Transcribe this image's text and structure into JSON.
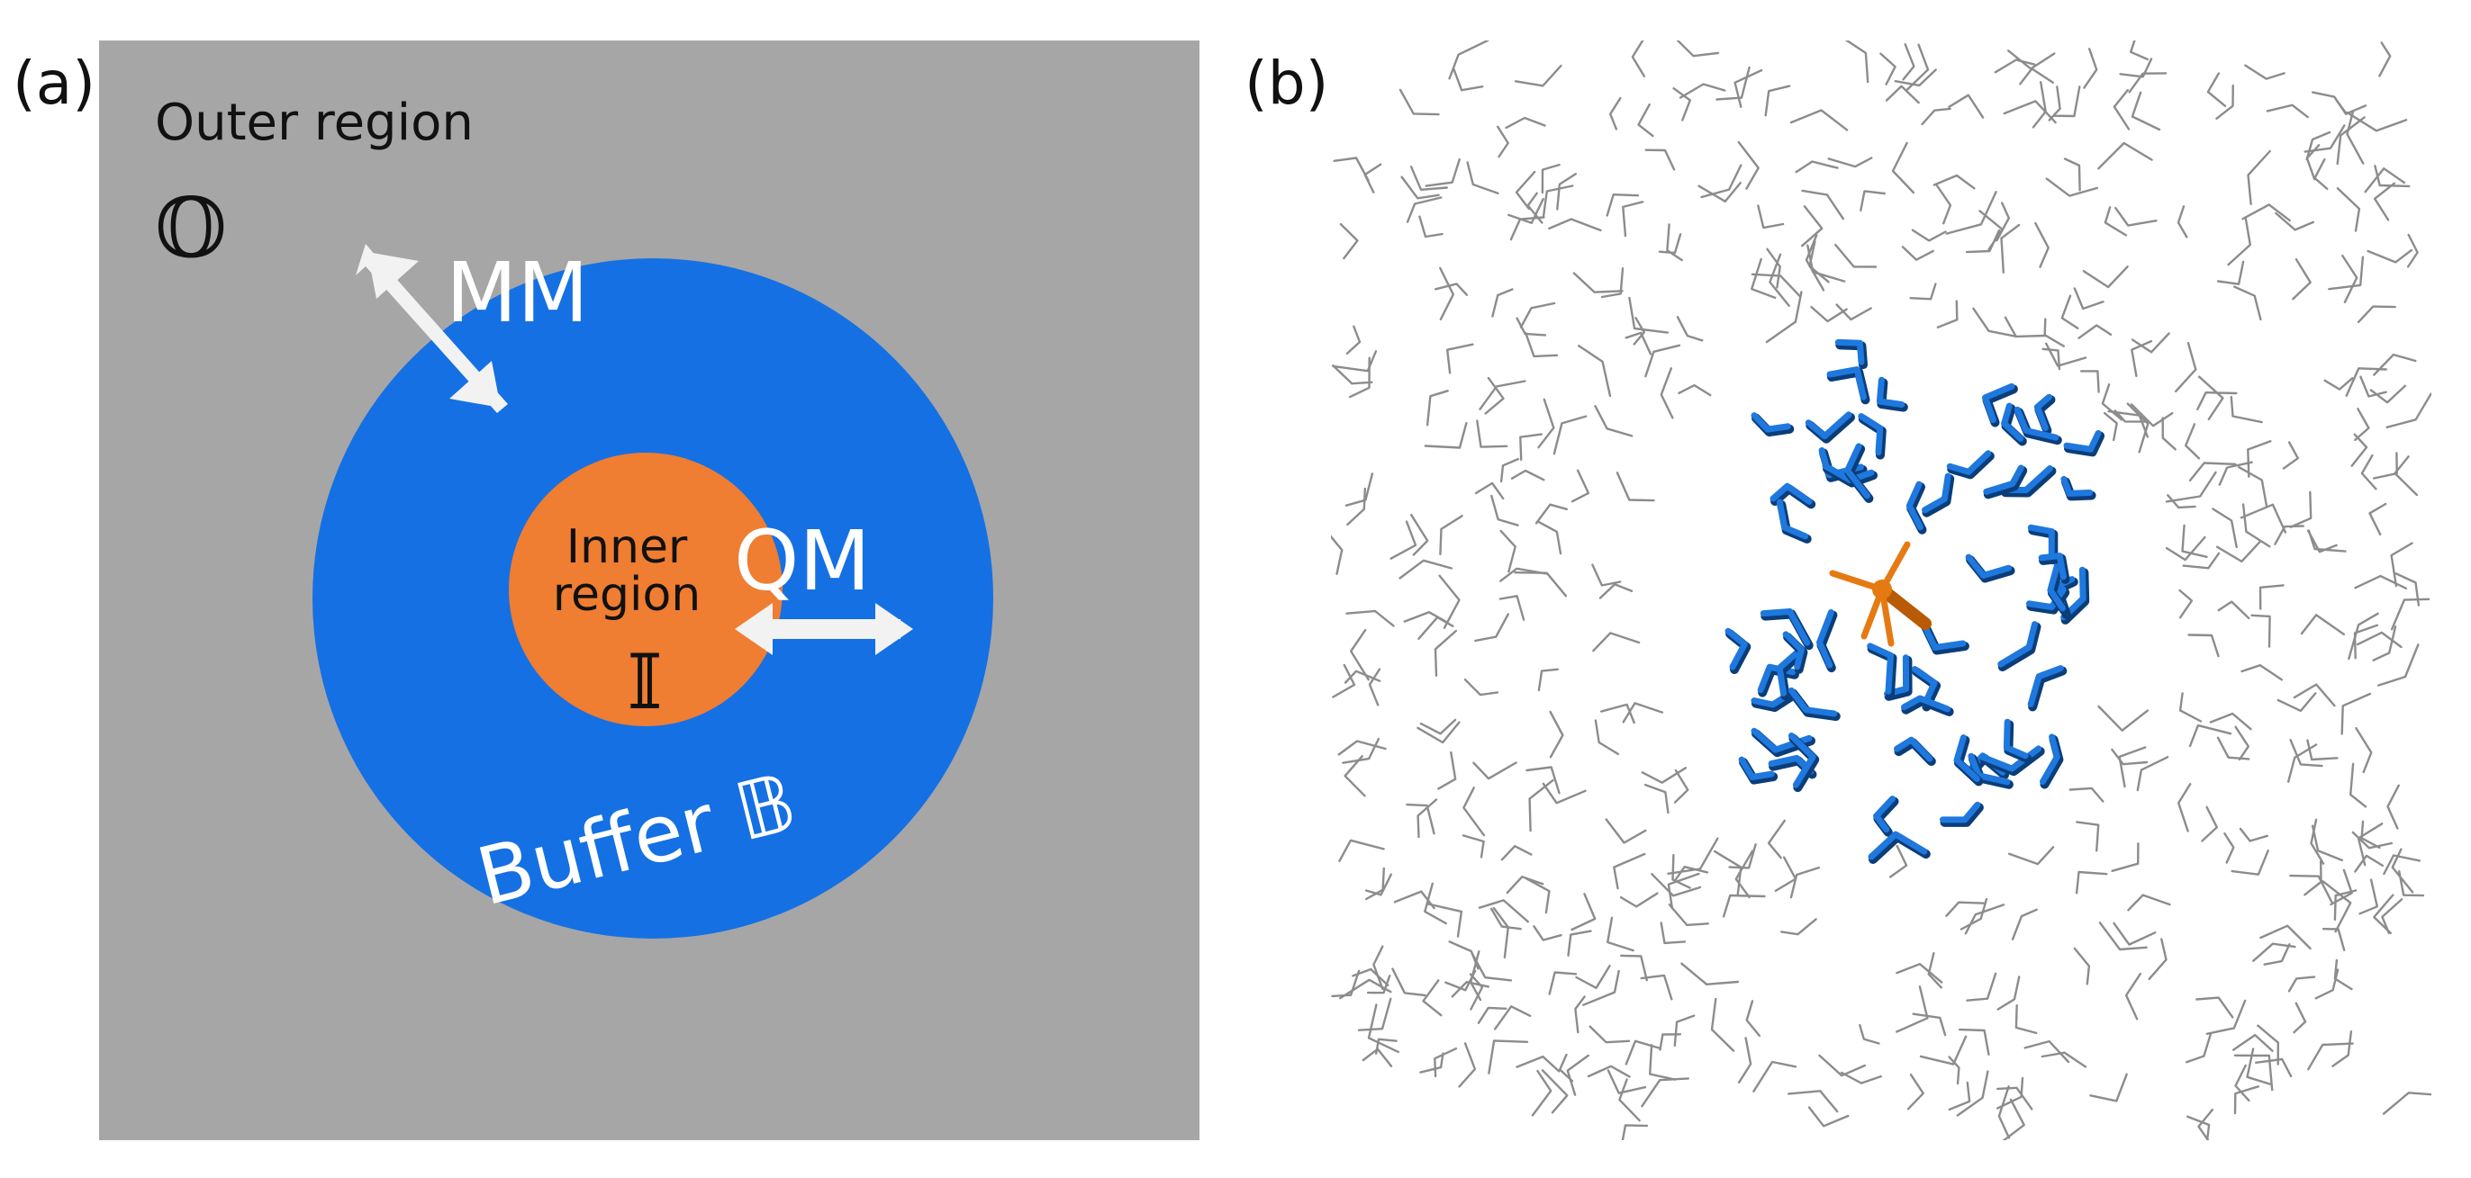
{
  "panel_a": {
    "label": "(a)",
    "outer_title": "Outer region",
    "outer_symbol": "𝕆",
    "mm_label": "MM",
    "qm_label": "QM",
    "inner_line1": "Inner",
    "inner_line2": "region",
    "inner_symbol": "𝕀",
    "buffer_label": "Buffer 𝔹",
    "colors": {
      "outer": "#a6a6a6",
      "buffer": "#1570e3",
      "inner": "#ef7d32",
      "arrow": "#f2f2f2",
      "text_light": "#ffffff",
      "text_dark": "#111111"
    }
  },
  "panel_b": {
    "label": "(b)",
    "colors": {
      "solvent": "#8c8c8c",
      "buffer_molecules": "#1e78de",
      "buffer_shadow": "#0b3d78",
      "solute": "#e57a12",
      "solute_dark": "#b85a06"
    }
  }
}
